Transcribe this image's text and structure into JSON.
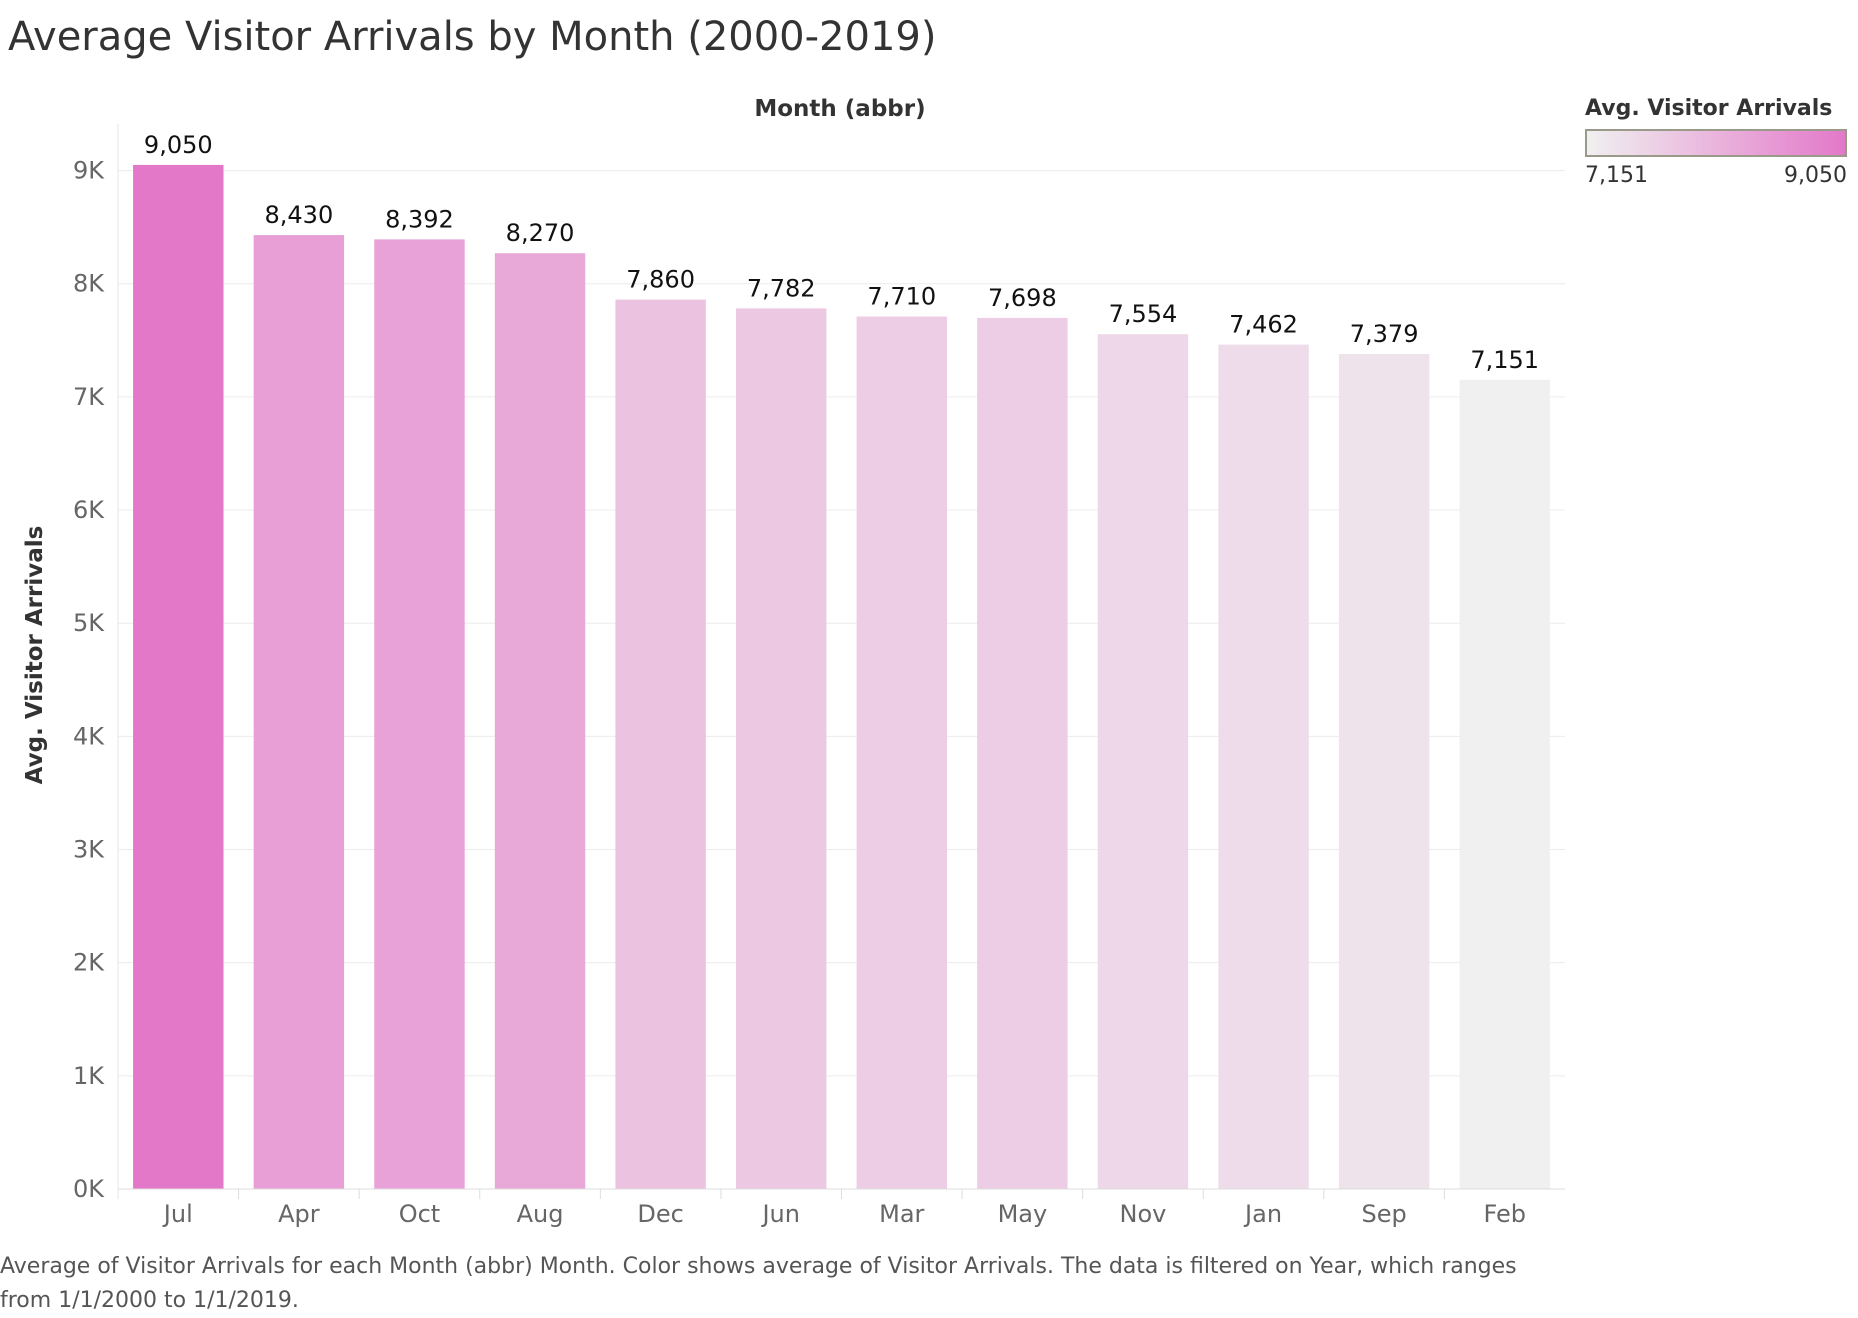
{
  "chart_data": {
    "type": "bar",
    "title": "Average Visitor Arrivals by Month (2000-2019)",
    "column_header": "Month (abbr)",
    "ylabel": "Avg. Visitor Arrivals",
    "xlabel": "",
    "categories": [
      "Jul",
      "Apr",
      "Oct",
      "Aug",
      "Dec",
      "Jun",
      "Mar",
      "May",
      "Nov",
      "Jan",
      "Sep",
      "Feb"
    ],
    "values": [
      9050,
      8430,
      8392,
      8270,
      7860,
      7782,
      7710,
      7698,
      7554,
      7462,
      7379,
      7151
    ],
    "value_labels": [
      "9,050",
      "8,430",
      "8,392",
      "8,270",
      "7,860",
      "7,782",
      "7,710",
      "7,698",
      "7,554",
      "7,462",
      "7,379",
      "7,151"
    ],
    "ylim": [
      0,
      9500
    ],
    "yticks": [
      0,
      1000,
      2000,
      3000,
      4000,
      5000,
      6000,
      7000,
      8000,
      9000
    ],
    "ytick_labels": [
      "0K",
      "1K",
      "2K",
      "3K",
      "4K",
      "5K",
      "6K",
      "7K",
      "8K",
      "9K"
    ],
    "grid": true,
    "legend": {
      "title": "Avg. Visitor Arrivals",
      "min_label": "7,151",
      "max_label": "9,050",
      "min_value": 7151,
      "max_value": 9050,
      "min_color": "#f0f0f0",
      "max_color": "#e378c9",
      "placement": "top-right"
    },
    "caption": "Average of Visitor Arrivals for each Month (abbr) Month.  Color shows average of Visitor Arrivals. The data is filtered on Year, which ranges from 1/1/2000 to 1/1/2019."
  }
}
